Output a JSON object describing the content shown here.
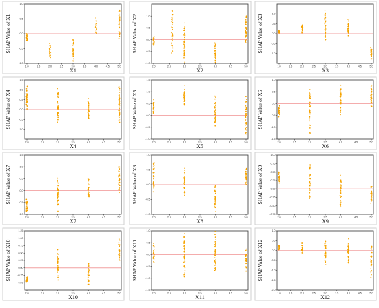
{
  "figure": {
    "point_color": "#f5a300",
    "zero_line_color": "#f2a0a0"
  },
  "chart_data": [
    {
      "type": "scatter",
      "ylabel": "SHAP Value of X1",
      "xlabel": "X1",
      "xlim": [
        1,
        5
      ],
      "ylim": [
        -1.0,
        1.0
      ],
      "xticks": [
        "1.0",
        "1.5",
        "2.0",
        "2.5",
        "3.0",
        "3.5",
        "4.0",
        "4.5",
        "5.0"
      ],
      "yticks": [
        "-1.0",
        "-0.5",
        "0.0",
        "0.5",
        "1.0"
      ],
      "clusters": [
        {
          "x": 1,
          "ymin": -0.3,
          "ymax": 0.05
        },
        {
          "x": 2,
          "ymin": -0.95,
          "ymax": -0.25
        },
        {
          "x": 3,
          "ymin": -1.0,
          "ymax": -0.1
        },
        {
          "x": 4,
          "ymin": -0.15,
          "ymax": 0.6
        },
        {
          "x": 5,
          "ymin": -0.25,
          "ymax": 0.95
        }
      ]
    },
    {
      "type": "scatter",
      "ylabel": "SHAP Value of X2",
      "xlabel": "X2",
      "xlim": [
        2,
        5
      ],
      "ylim": [
        -1.0,
        1.5
      ],
      "xticks": [
        "2.0",
        "2.5",
        "3.0",
        "3.5",
        "4.0",
        "4.5",
        "5.0"
      ],
      "yticks": [
        "-1.0",
        "-0.5",
        "0.0",
        "0.5",
        "1.0"
      ],
      "clusters": [
        {
          "x": 2,
          "ymin": -0.3,
          "ymax": 0.2
        },
        {
          "x": 2.6,
          "ymin": -0.7,
          "ymax": 1.4
        },
        {
          "x": 3,
          "ymin": -1.0,
          "ymax": 0.9
        },
        {
          "x": 4,
          "ymin": -1.0,
          "ymax": -0.05
        },
        {
          "x": 5,
          "ymin": -0.35,
          "ymax": 1.2
        }
      ]
    },
    {
      "type": "scatter",
      "ylabel": "SHAP Value of X3",
      "xlabel": "X3",
      "xlim": [
        1,
        5
      ],
      "ylim": [
        -1.5,
        1.5
      ],
      "xticks": [
        "1.0",
        "1.5",
        "2.0",
        "2.5",
        "3.0",
        "3.5",
        "4.0",
        "4.5",
        "5.0"
      ],
      "yticks": [
        "-1.0",
        "-0.5",
        "0.0",
        "0.5",
        "1.0"
      ],
      "clusters": [
        {
          "x": 1,
          "ymin": 0.0,
          "ymax": 0.2
        },
        {
          "x": 2,
          "ymin": 0.0,
          "ymax": 0.5
        },
        {
          "x": 3,
          "ymin": -0.6,
          "ymax": 1.3
        },
        {
          "x": 4,
          "ymin": -0.3,
          "ymax": 0.9
        },
        {
          "x": 5,
          "ymin": -1.3,
          "ymax": -0.6
        }
      ]
    },
    {
      "type": "scatter",
      "ylabel": "SHAP Value of X4",
      "xlabel": "X4",
      "xlim": [
        2,
        5
      ],
      "ylim": [
        -1.5,
        1.5
      ],
      "xticks": [
        "2.0",
        "2.5",
        "3.0",
        "3.5",
        "4.0",
        "4.5",
        "5.0"
      ],
      "yticks": [
        "-1.0",
        "-0.5",
        "0.0",
        "0.5",
        "1.0",
        "1.5"
      ],
      "clusters": [
        {
          "x": 2,
          "ymin": 0.0,
          "ymax": 1.2
        },
        {
          "x": 3,
          "ymin": -0.8,
          "ymax": 1.1
        },
        {
          "x": 4,
          "ymin": -0.7,
          "ymax": 0.7
        },
        {
          "x": 5,
          "ymin": -1.0,
          "ymax": 1.5
        }
      ]
    },
    {
      "type": "scatter",
      "ylabel": "SHAP Value of X5",
      "xlabel": "X5",
      "xlim": [
        2,
        5
      ],
      "ylim": [
        -1.0,
        1.5
      ],
      "xticks": [
        "2.0",
        "2.5",
        "3.0",
        "3.5",
        "4.0",
        "4.5",
        "5.0"
      ],
      "yticks": [
        "-1.0",
        "-0.5",
        "0.0",
        "0.5",
        "1.0",
        "1.5"
      ],
      "clusters": [
        {
          "x": 2,
          "ymin": 0.0,
          "ymax": 0.7
        },
        {
          "x": 3,
          "ymin": 0.3,
          "ymax": 1.3
        },
        {
          "x": 4,
          "ymin": -0.6,
          "ymax": 0.9
        },
        {
          "x": 5,
          "ymin": -0.9,
          "ymax": 0.9
        }
      ]
    },
    {
      "type": "scatter",
      "ylabel": "SHAP Value of X6",
      "xlabel": "X6",
      "xlim": [
        2,
        5
      ],
      "ylim": [
        -1.5,
        1.0
      ],
      "xticks": [
        "2.0",
        "2.5",
        "3.0",
        "3.5",
        "4.0",
        "4.5",
        "5.0"
      ],
      "yticks": [
        "-1.5",
        "-1.0",
        "-0.5",
        "0.0",
        "0.5",
        "1.0"
      ],
      "clusters": [
        {
          "x": 2,
          "ymin": -0.6,
          "ymax": 0.0
        },
        {
          "x": 3,
          "ymin": -1.4,
          "ymax": 0.7
        },
        {
          "x": 4,
          "ymin": -0.5,
          "ymax": 0.9
        },
        {
          "x": 5,
          "ymin": -0.3,
          "ymax": 0.9
        }
      ]
    },
    {
      "type": "scatter",
      "ylabel": "SHAP Value of X7",
      "xlabel": "X7",
      "xlim": [
        2,
        5
      ],
      "ylim": [
        -1.0,
        1.5
      ],
      "xticks": [
        "2.0",
        "2.5",
        "3.0",
        "3.5",
        "4.0",
        "4.5",
        "5.0"
      ],
      "yticks": [
        "-1.0",
        "-0.5",
        "0.0",
        "0.5",
        "1.0",
        "1.5"
      ],
      "clusters": [
        {
          "x": 2,
          "ymin": -0.9,
          "ymax": -0.3
        },
        {
          "x": 3,
          "ymin": -1.0,
          "ymax": 0.6
        },
        {
          "x": 4,
          "ymin": -0.4,
          "ymax": 0.5
        },
        {
          "x": 5,
          "ymin": -0.2,
          "ymax": 1.2
        }
      ]
    },
    {
      "type": "scatter",
      "ylabel": "SHAP Value of X8",
      "xlabel": "X8",
      "xlim": [
        2,
        5
      ],
      "ylim": [
        -1.0,
        1.0
      ],
      "xticks": [
        "2.0",
        "2.5",
        "3.0",
        "3.5",
        "4.0",
        "4.5",
        "5.0"
      ],
      "yticks": [
        "-1.0",
        "-0.5",
        "0.0",
        "0.5",
        "1.0"
      ],
      "clusters": [
        {
          "x": 2,
          "ymin": -0.3,
          "ymax": 0.9
        },
        {
          "x": 3,
          "ymin": -0.5,
          "ymax": 0.7
        },
        {
          "x": 4,
          "ymin": -1.0,
          "ymax": 0.1
        },
        {
          "x": 5,
          "ymin": 0.0,
          "ymax": 0.6
        }
      ]
    },
    {
      "type": "scatter",
      "ylabel": "SHAP Value of X9",
      "xlabel": "X9",
      "xlim": [
        2,
        5
      ],
      "ylim": [
        -0.75,
        1.0
      ],
      "xticks": [
        "2.0",
        "2.5",
        "3.0",
        "3.5",
        "4.0",
        "4.5",
        "5.0"
      ],
      "yticks": [
        "-0.75",
        "-0.50",
        "-0.25",
        "0.00",
        "0.25",
        "0.50",
        "0.75",
        "1.00"
      ],
      "clusters": [
        {
          "x": 2,
          "ymin": 0.1,
          "ymax": 0.6
        },
        {
          "x": 3,
          "ymin": -0.4,
          "ymax": 0.9
        },
        {
          "x": 4,
          "ymin": -0.6,
          "ymax": 0.45
        },
        {
          "x": 5,
          "ymin": -0.5,
          "ymax": 0.2
        }
      ]
    },
    {
      "type": "scatter",
      "ylabel": "SHAP Value of X10",
      "xlabel": "X10",
      "xlim": [
        2,
        5
      ],
      "ylim": [
        -0.75,
        1.25
      ],
      "xticks": [
        "2.0",
        "2.5",
        "3.0",
        "3.5",
        "4.0",
        "4.5",
        "5.0"
      ],
      "yticks": [
        "-0.50",
        "-0.25",
        "0.00",
        "0.25",
        "0.50",
        "0.75",
        "1.00",
        "1.25"
      ],
      "clusters": [
        {
          "x": 2,
          "ymin": -0.5,
          "ymax": -0.3
        },
        {
          "x": 3,
          "ymin": -0.45,
          "ymax": 0.75
        },
        {
          "x": 4,
          "ymin": -0.7,
          "ymax": 0.2
        },
        {
          "x": 5,
          "ymin": 0.1,
          "ymax": 1.1
        }
      ]
    },
    {
      "type": "scatter",
      "ylabel": "SHAP Value of X11",
      "xlabel": "X11",
      "xlim": [
        2,
        5
      ],
      "ylim": [
        -1.5,
        1.0
      ],
      "xticks": [
        "2.0",
        "2.5",
        "3.0",
        "3.5",
        "4.0",
        "4.5",
        "5.0"
      ],
      "yticks": [
        "-1.5",
        "-1.0",
        "-0.5",
        "0.0",
        "0.5",
        "1.0"
      ],
      "clusters": [
        {
          "x": 2,
          "ymin": -0.5,
          "ymax": 0.6
        },
        {
          "x": 3,
          "ymin": -1.2,
          "ymax": 0.9
        },
        {
          "x": 4,
          "ymin": -0.9,
          "ymax": 1.0
        },
        {
          "x": 5,
          "ymin": -0.8,
          "ymax": 0.3
        }
      ]
    },
    {
      "type": "scatter",
      "ylabel": "SHAP Value of X12",
      "xlabel": "X12",
      "xlim": [
        1,
        5
      ],
      "ylim": [
        -2.0,
        1.0
      ],
      "xticks": [
        "1.0",
        "1.5",
        "2.0",
        "2.5",
        "3.0",
        "3.5",
        "4.0",
        "4.5",
        "5.0"
      ],
      "yticks": [
        "-2.0",
        "-1.5",
        "-1.0",
        "-0.5",
        "0.0",
        "0.5",
        "1.0"
      ],
      "clusters": [
        {
          "x": 1,
          "ymin": 0.0,
          "ymax": 0.3
        },
        {
          "x": 2,
          "ymin": -0.3,
          "ymax": 0.5
        },
        {
          "x": 3,
          "ymin": -0.8,
          "ymax": 0.6
        },
        {
          "x": 4,
          "ymin": -0.8,
          "ymax": 0.7
        },
        {
          "x": 5,
          "ymin": -1.4,
          "ymax": 0.4
        }
      ]
    }
  ]
}
